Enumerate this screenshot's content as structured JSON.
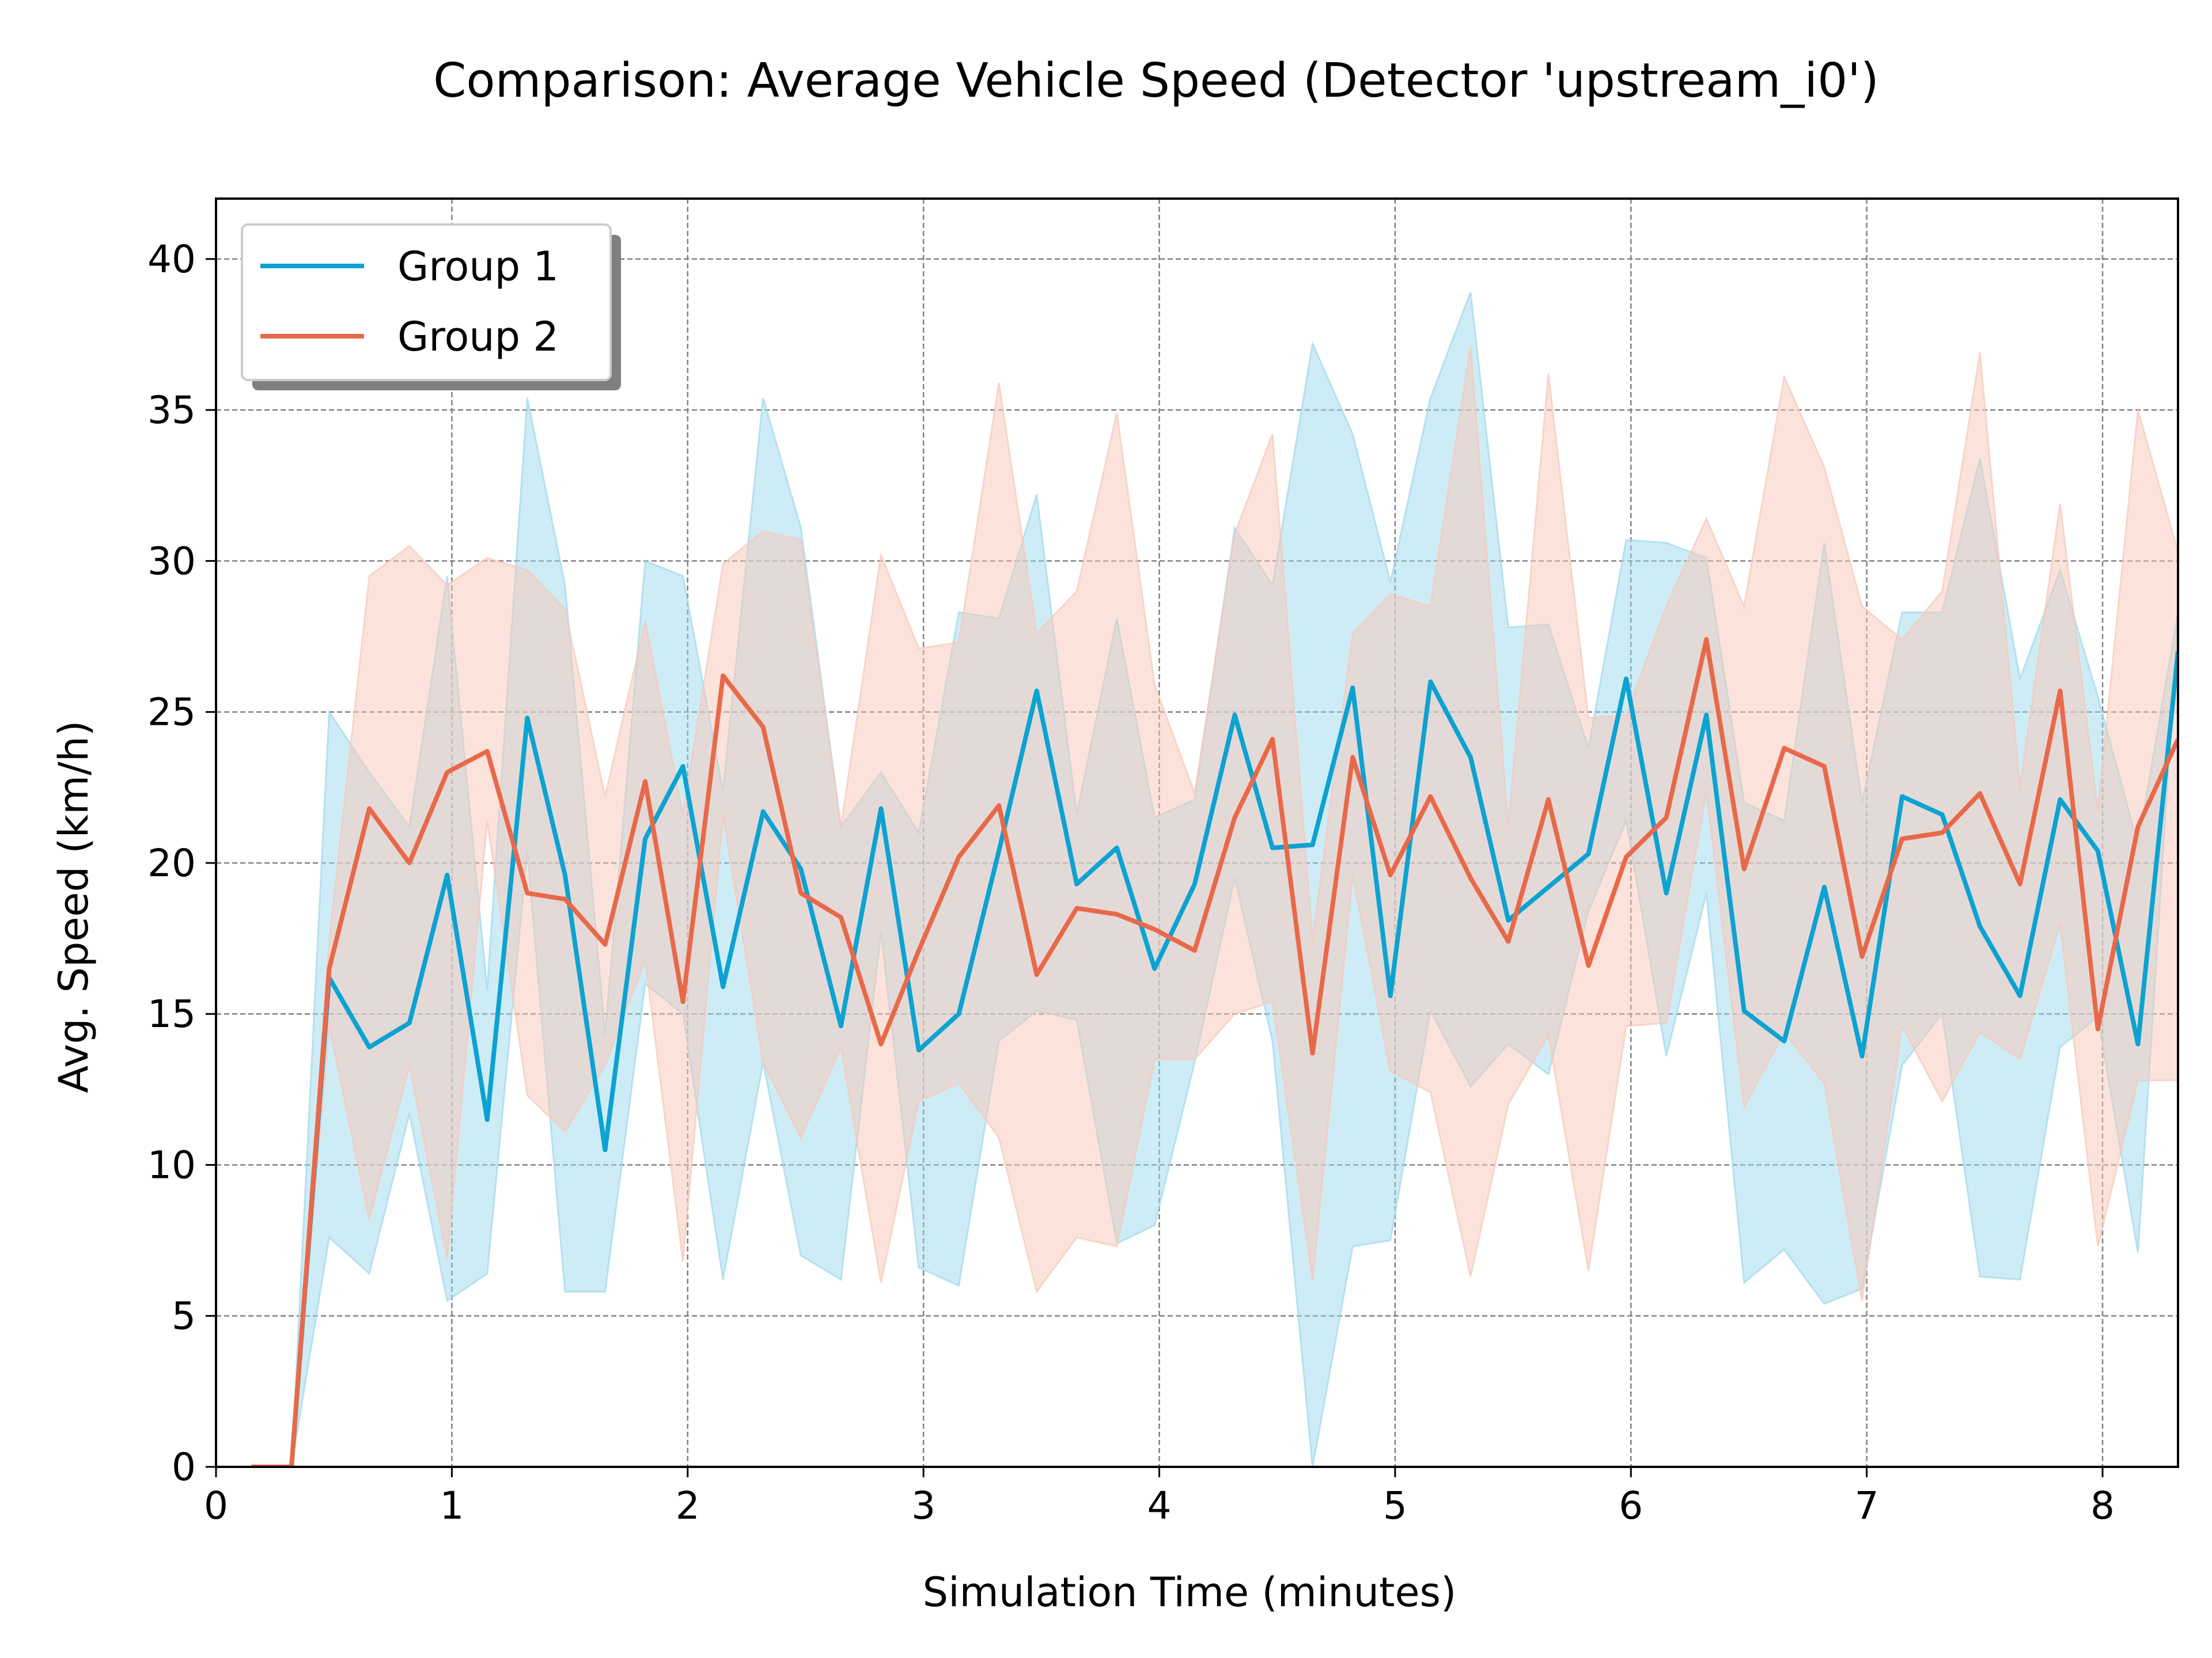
{
  "chart_data": {
    "type": "line",
    "title": "Comparison: Average Vehicle Speed (Detector 'upstream_i0')",
    "xlabel": "Simulation Time (minutes)",
    "ylabel": "Avg. Speed (km/h)",
    "xlim": [
      0,
      8.32
    ],
    "ylim": [
      0,
      42
    ],
    "xticks": [
      "0",
      "1",
      "2",
      "3",
      "4",
      "5",
      "6",
      "7",
      "8"
    ],
    "yticks": [
      "0",
      "5",
      "10",
      "15",
      "20",
      "25",
      "30",
      "35",
      "40"
    ],
    "grid": true,
    "legend_position": "upper-left",
    "x": [
      0.15,
      0.32,
      0.48,
      0.65,
      0.82,
      0.98,
      1.15,
      1.32,
      1.48,
      1.65,
      1.82,
      1.98,
      2.15,
      2.32,
      2.48,
      2.65,
      2.82,
      2.98,
      3.15,
      3.32,
      3.48,
      3.65,
      3.82,
      3.98,
      4.15,
      4.32,
      4.48,
      4.65,
      4.82,
      4.98,
      5.15,
      5.32,
      5.48,
      5.65,
      5.82,
      5.98,
      6.15,
      6.32,
      6.48,
      6.65,
      6.82,
      6.98,
      7.15,
      7.32,
      7.48,
      7.65,
      7.82,
      7.98,
      8.15,
      8.32
    ],
    "series": [
      {
        "name": "Group 1",
        "color": "#0ca2d1",
        "band_color": "#9ed9ed",
        "values": [
          0,
          0,
          16.2,
          13.9,
          14.7,
          19.6,
          11.5,
          24.8,
          19.6,
          10.5,
          20.8,
          23.2,
          15.9,
          21.7,
          19.8,
          14.6,
          21.8,
          13.8,
          15.0,
          20.4,
          25.7,
          19.3,
          20.5,
          16.5,
          19.3,
          24.9,
          20.5,
          20.6,
          25.8,
          15.6,
          26.0,
          23.5,
          18.1,
          19.2,
          20.3,
          26.1,
          19.0,
          24.9,
          15.1,
          14.1,
          19.2,
          13.6,
          22.2,
          21.6,
          17.9,
          15.6,
          22.1,
          20.4,
          14.0,
          27.0
        ],
        "lower": [
          0,
          0,
          7.6,
          6.4,
          11.7,
          5.5,
          6.4,
          20.4,
          5.8,
          5.8,
          16.0,
          15.0,
          6.2,
          13.4,
          7.0,
          6.2,
          17.7,
          6.6,
          6.0,
          14.1,
          15.1,
          14.8,
          7.4,
          8.0,
          13.4,
          19.5,
          14.1,
          0,
          7.3,
          7.5,
          15.1,
          12.6,
          14.0,
          13.0,
          18.4,
          21.4,
          13.6,
          19.0,
          6.1,
          7.2,
          5.4,
          5.9,
          13.3,
          15.0,
          6.3,
          6.2,
          13.9,
          14.9,
          7.1,
          28.2
        ],
        "upper": [
          0,
          0,
          25.0,
          23.0,
          21.2,
          29.5,
          15.8,
          35.4,
          29.2,
          14.3,
          30.0,
          29.5,
          22.4,
          35.4,
          31.1,
          21.2,
          23.0,
          21.0,
          28.3,
          28.1,
          32.2,
          21.6,
          28.1,
          21.5,
          22.1,
          31.1,
          29.2,
          37.2,
          34.2,
          29.3,
          35.4,
          38.9,
          27.8,
          27.9,
          23.8,
          30.7,
          30.6,
          30.1,
          22.0,
          21.4,
          30.6,
          22.0,
          28.3,
          28.3,
          33.4,
          26.1,
          29.7,
          25.5,
          20.6,
          28.3
        ]
      },
      {
        "name": "Group 2",
        "color": "#e8694a",
        "band_color": "#f8c7b8",
        "values": [
          0,
          0,
          16.5,
          21.8,
          20.0,
          23.0,
          23.7,
          19.0,
          18.8,
          17.3,
          22.7,
          15.4,
          26.2,
          24.5,
          19.0,
          18.2,
          14.0,
          17.1,
          20.2,
          21.9,
          16.3,
          18.5,
          18.3,
          17.8,
          17.1,
          21.5,
          24.1,
          13.7,
          23.5,
          19.6,
          22.2,
          19.5,
          17.4,
          22.1,
          16.6,
          20.2,
          21.5,
          27.4,
          19.8,
          23.8,
          23.2,
          16.9,
          20.8,
          21.0,
          22.3,
          19.3,
          25.7,
          14.5,
          21.2,
          24.1
        ],
        "lower": [
          0,
          0,
          14.6,
          8.2,
          13.3,
          6.9,
          21.4,
          12.3,
          11.1,
          13.3,
          16.8,
          6.8,
          21.6,
          13.4,
          10.9,
          13.9,
          6.1,
          12.1,
          12.7,
          10.9,
          5.8,
          7.6,
          7.3,
          13.5,
          13.5,
          15.0,
          15.4,
          6.2,
          19.6,
          13.1,
          12.4,
          6.3,
          12.0,
          14.3,
          6.5,
          14.6,
          14.7,
          22.4,
          11.9,
          14.4,
          12.7,
          5.5,
          14.6,
          12.1,
          14.4,
          13.5,
          18.0,
          7.3,
          12.8,
          12.8
        ],
        "upper": [
          0,
          0,
          17.4,
          29.5,
          30.5,
          29.2,
          30.1,
          29.7,
          28.4,
          22.2,
          28.0,
          21.6,
          29.9,
          31.0,
          30.7,
          21.2,
          30.2,
          27.1,
          27.3,
          35.9,
          27.6,
          29.0,
          34.9,
          25.9,
          22.3,
          30.9,
          34.2,
          17.4,
          27.6,
          28.9,
          28.5,
          37.1,
          21.2,
          36.2,
          24.8,
          24.9,
          28.5,
          31.4,
          28.5,
          36.1,
          33.1,
          28.5,
          27.4,
          29.0,
          36.9,
          22.5,
          31.9,
          21.7,
          35.0,
          30.3
        ]
      }
    ]
  }
}
